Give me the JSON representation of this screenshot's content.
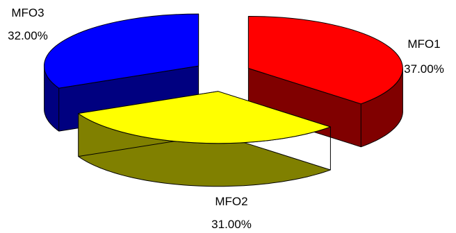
{
  "chart_data": {
    "type": "pie",
    "style": "3d-exploded",
    "slices": [
      {
        "name": "MFO1",
        "value": 37,
        "value_label": "37.00%",
        "color": "#ff0000",
        "side_color": "#800000"
      },
      {
        "name": "MFO2",
        "value": 31,
        "value_label": "31.00%",
        "color": "#ffff00",
        "side_color": "#808000"
      },
      {
        "name": "MFO3",
        "value": 32,
        "value_label": "32.00%",
        "color": "#0000ff",
        "side_color": "#000080"
      }
    ]
  }
}
